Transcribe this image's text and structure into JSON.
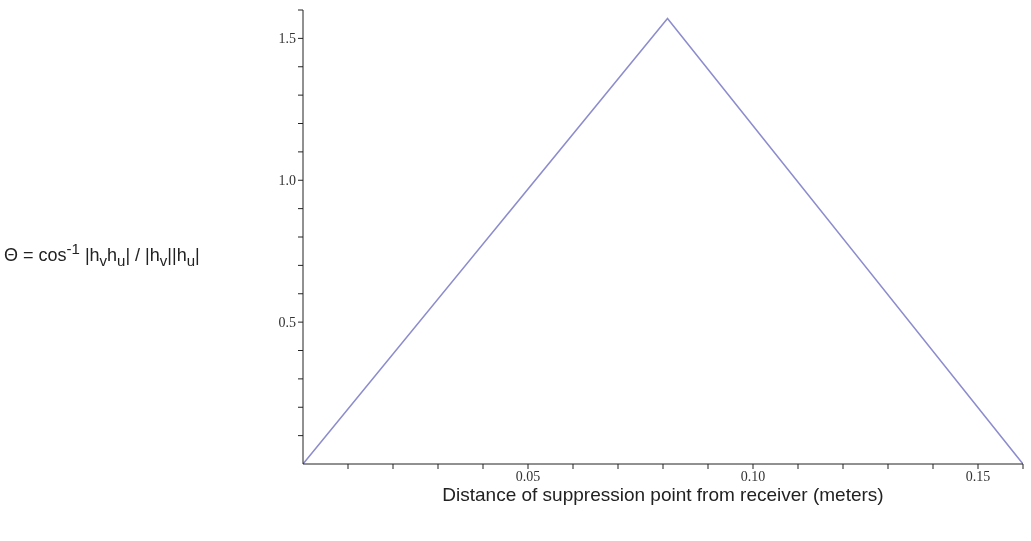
{
  "chart_data": {
    "type": "line",
    "xlabel": "Distance of suppression point from receiver (meters)",
    "ylabel": "Θ = cos$^{-1}$ |h$_{v}$h$_{u}$| / |h$_{v}$||h$_{u}$|",
    "x": [
      0,
      0.081,
      0.16
    ],
    "series": [
      {
        "color": "#8c8ccf",
        "values": [
          0,
          1.57,
          0
        ]
      }
    ],
    "xlim": [
      0,
      0.16
    ],
    "xticks": [
      {
        "value": 0.01,
        "label": null
      },
      {
        "value": 0.02,
        "label": null
      },
      {
        "value": 0.03,
        "label": null
      },
      {
        "value": 0.04,
        "label": null
      },
      0.05,
      {
        "value": 0.06,
        "label": null
      },
      {
        "value": 0.07,
        "label": null
      },
      {
        "value": 0.08,
        "label": null
      },
      {
        "value": 0.09,
        "label": null
      },
      {
        "value": 0.1,
        "label": "0.10"
      },
      {
        "value": 0.11,
        "label": null
      },
      {
        "value": 0.12,
        "label": null
      },
      {
        "value": 0.13,
        "label": null
      },
      {
        "value": 0.14,
        "label": null
      },
      0.15,
      {
        "value": 0.16,
        "label": null
      }
    ],
    "ylim": [
      0,
      1.6
    ],
    "yticks": [
      {
        "value": 0.1,
        "label": null
      },
      {
        "value": 0.2,
        "label": null
      },
      {
        "value": 0.3,
        "label": null
      },
      {
        "value": 0.4,
        "label": null
      },
      0.5,
      {
        "value": 0.6,
        "label": null
      },
      {
        "value": 0.7,
        "label": null
      },
      {
        "value": 0.8,
        "label": null
      },
      {
        "value": 0.9,
        "label": null
      },
      {
        "value": 1,
        "label": "1.0"
      },
      {
        "value": 1.1,
        "label": null
      },
      {
        "value": 1.2,
        "label": null
      },
      {
        "value": 1.3,
        "label": null
      },
      {
        "value": 1.4,
        "label": null
      },
      1.5,
      {
        "value": 1.6,
        "label": null
      }
    ]
  }
}
